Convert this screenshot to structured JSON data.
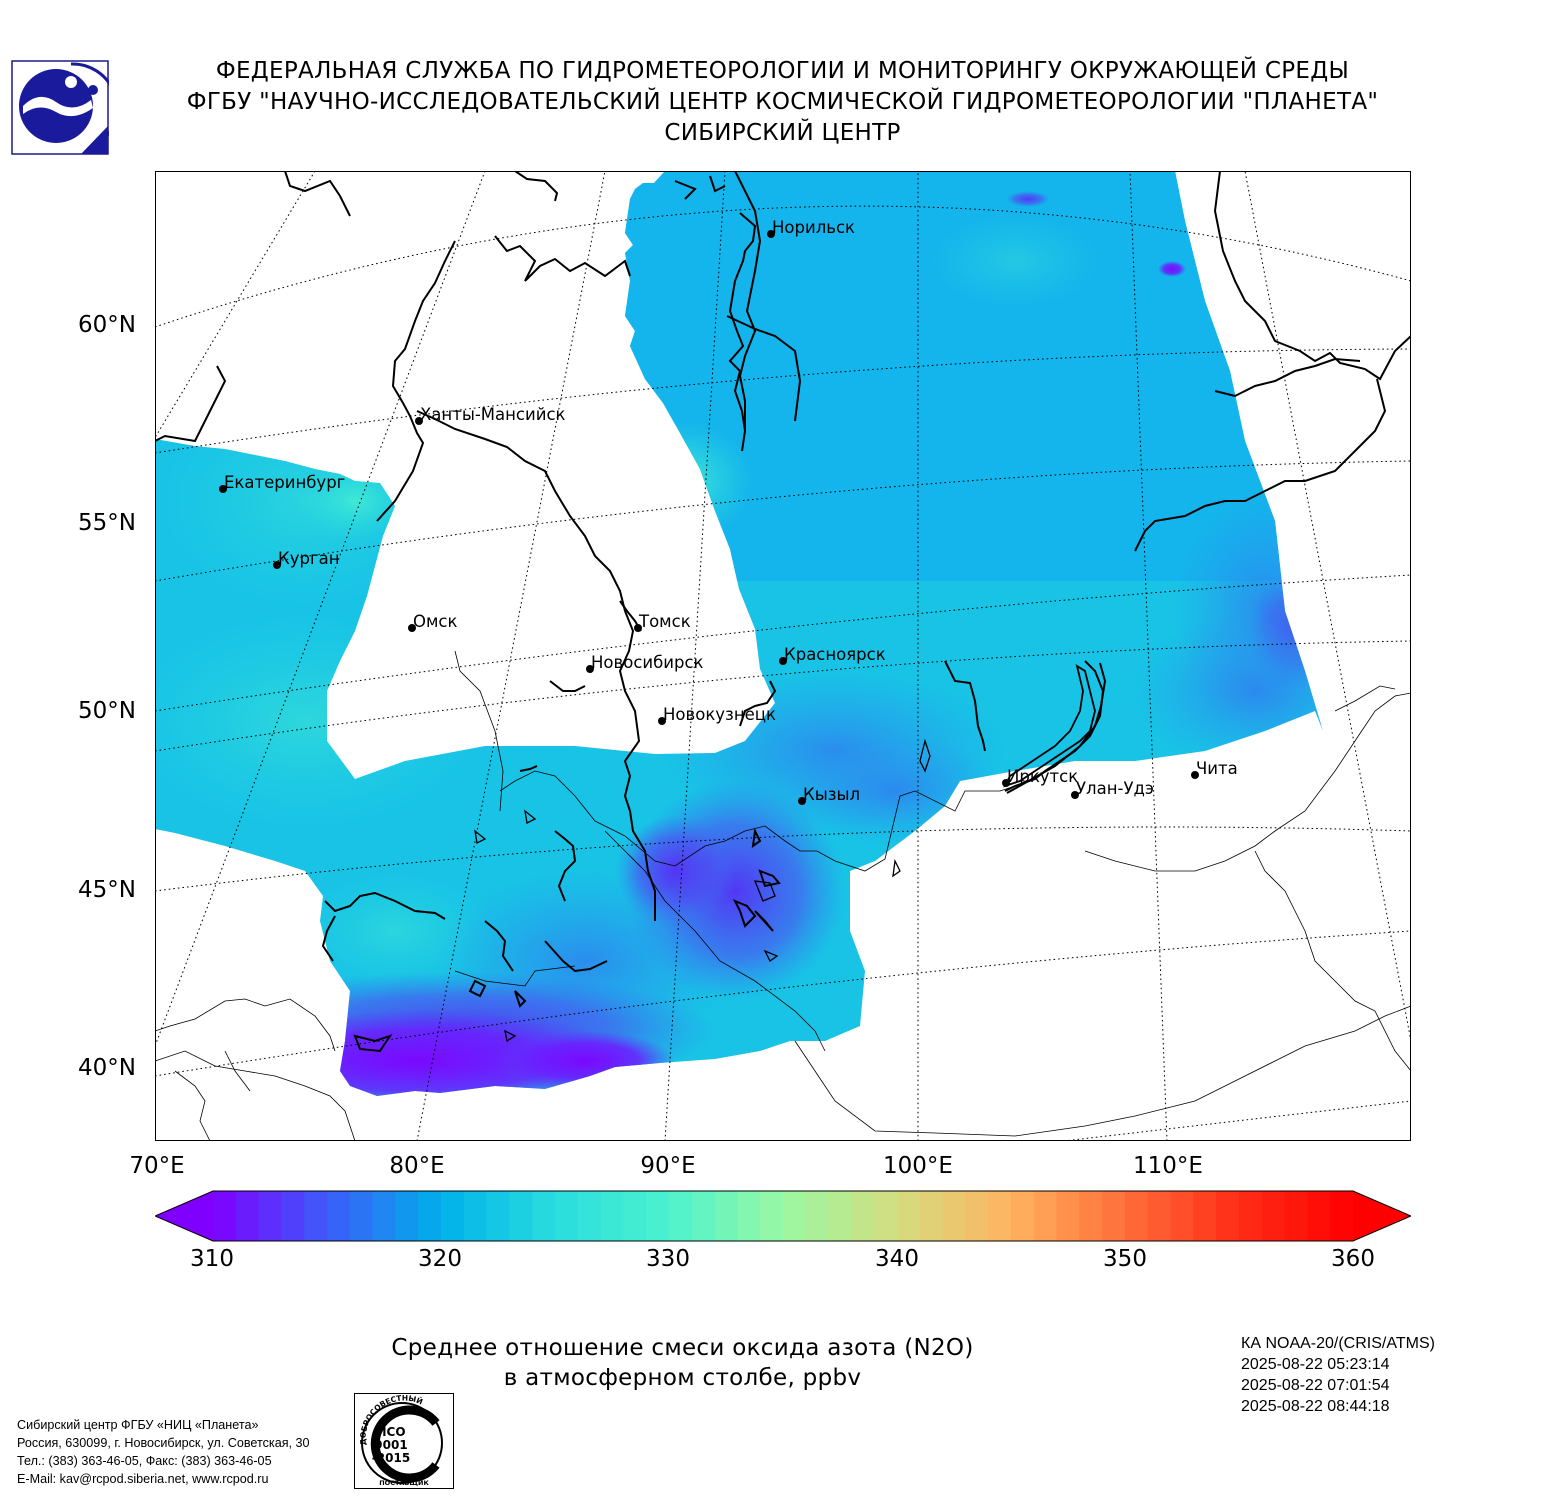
{
  "header": {
    "line1": "ФЕДЕРАЛЬНАЯ СЛУЖБА ПО ГИДРОМЕТЕОРОЛОГИИ И МОНИТОРИНГУ ОКРУЖАЮЩЕЙ СРЕДЫ",
    "line2": "ФГБУ \"НАУЧНО-ИССЛЕДОВАТЕЛЬСКИЙ ЦЕНТР КОСМИЧЕСКОЙ ГИДРОМЕТЕОРОЛОГИИ \"ПЛАНЕТА\"",
    "line3": "СИБИРСКИЙ ЦЕНТР"
  },
  "logo_icon": "roshydromet-logo",
  "map": {
    "lat_labels": [
      "60°N",
      "55°N",
      "50°N",
      "45°N",
      "40°N"
    ],
    "lon_labels": [
      "70°E",
      "80°E",
      "90°E",
      "100°E",
      "110°E"
    ],
    "cities": [
      {
        "name": "Норильск"
      },
      {
        "name": "Ханты-Мансийск"
      },
      {
        "name": "Екатеринбург"
      },
      {
        "name": "Курган"
      },
      {
        "name": "Омск"
      },
      {
        "name": "Томск"
      },
      {
        "name": "Новосибирск"
      },
      {
        "name": "Красноярск"
      },
      {
        "name": "Новокузнецк"
      },
      {
        "name": "Иркутск"
      },
      {
        "name": "Улан-Удэ"
      },
      {
        "name": "Чита"
      },
      {
        "name": "Кызыл"
      }
    ]
  },
  "colorbar": {
    "min": 310,
    "max": 360,
    "ticks": [
      "310",
      "320",
      "330",
      "340",
      "350",
      "360"
    ],
    "colors": [
      "#7f00ff",
      "#3d5cf9",
      "#00b0eb",
      "#2adddd",
      "#4cf2ce",
      "#9af8a2",
      "#d4dd80",
      "#ffb360",
      "#ff6e3a",
      "#ff2d17",
      "#ff0000"
    ]
  },
  "caption": {
    "line1": "Среднее отношение смеси оксида азота (N2O)",
    "line2": "в атмосферном столбе, ppbv"
  },
  "satellite": {
    "name": "КА NOAA-20/(CRIS/ATMS)",
    "times": [
      "2025-08-22 05:23:14",
      "2025-08-22 07:01:54",
      "2025-08-22 08:44:18"
    ]
  },
  "footer": {
    "line1": "Сибирский центр ФГБУ «НИЦ «Планета»",
    "line2": "Россия, 630099, г. Новосибирск, ул. Советская, 30",
    "line3": "Тел.: (383) 363-46-05, Факс: (383) 363-46-05",
    "line4": "E-Mail: kav@rcpod.siberia.net, www.rcpod.ru"
  },
  "iso_badge": {
    "top_text": "ДОБРОСОВЕСТНЫЙ",
    "line1": "ИСО",
    "line2": "9001",
    "line3": "-2015",
    "bottom_text": "ПОСТАВЩИК"
  }
}
